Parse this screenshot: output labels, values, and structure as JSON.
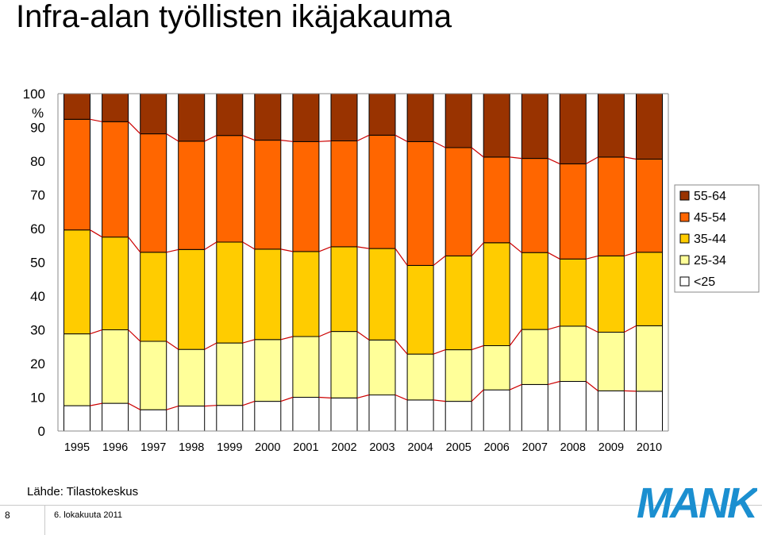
{
  "slide": {
    "title": "Infra-alan työllisten ikäjakauma",
    "source": "Lähde: Tilastokeskus",
    "slide_number": "8",
    "date": "6. lokakuuta 2011",
    "logo_text": "MANK",
    "logo_color": "#1b8fd0"
  },
  "chart_data": {
    "type": "bar",
    "stacked": true,
    "percent": true,
    "ylabel": "%",
    "ylim": [
      0,
      100
    ],
    "yticks": [
      0,
      10,
      20,
      30,
      40,
      50,
      60,
      70,
      80,
      90,
      100
    ],
    "grid": false,
    "legend_position": "right",
    "categories": [
      "1995",
      "1996",
      "1997",
      "1998",
      "1999",
      "2000",
      "2001",
      "2002",
      "2003",
      "2004",
      "2005",
      "2006",
      "2007",
      "2008",
      "2009",
      "2010"
    ],
    "series": [
      {
        "name": "<25",
        "color": "#ffffff",
        "values": [
          7.5,
          8.2,
          6.3,
          7.4,
          7.6,
          8.8,
          10.0,
          9.8,
          10.7,
          9.2,
          8.8,
          12.2,
          13.8,
          14.7,
          11.9,
          11.8
        ]
      },
      {
        "name": "25-34",
        "color": "#ffff99",
        "values": [
          21.3,
          21.8,
          20.3,
          16.8,
          18.5,
          18.3,
          18.0,
          19.7,
          16.3,
          13.6,
          15.3,
          13.1,
          16.3,
          16.4,
          17.4,
          19.4
        ]
      },
      {
        "name": "35-44",
        "color": "#ffcc00",
        "values": [
          30.8,
          27.5,
          26.4,
          29.6,
          29.9,
          26.8,
          25.2,
          25.1,
          27.1,
          26.3,
          27.8,
          30.5,
          22.8,
          19.9,
          22.6,
          21.8
        ]
      },
      {
        "name": "45-54",
        "color": "#ff6600",
        "values": [
          32.8,
          34.2,
          35.1,
          32.1,
          31.6,
          32.3,
          32.6,
          31.4,
          33.6,
          36.7,
          32.1,
          25.4,
          27.9,
          28.2,
          29.3,
          27.6
        ]
      },
      {
        "name": "55-64",
        "color": "#993300",
        "values": [
          7.6,
          8.3,
          11.9,
          14.1,
          12.4,
          13.8,
          14.2,
          14.0,
          12.3,
          14.2,
          16.0,
          18.8,
          19.2,
          20.8,
          18.8,
          19.4
        ]
      }
    ],
    "legend_order": [
      "55-64",
      "45-54",
      "35-44",
      "25-34",
      "<25"
    ],
    "connector_color": "#cc0000"
  }
}
